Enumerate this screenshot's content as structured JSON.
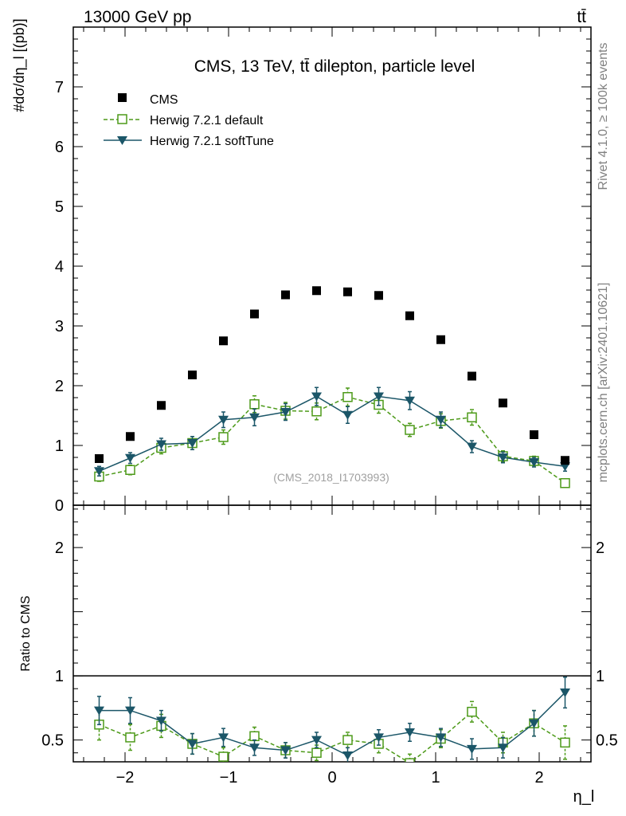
{
  "header": {
    "left_label": "13000 GeV pp",
    "right_label": "tt̄"
  },
  "side_labels": {
    "rivet": "Rivet 4.1.0, ≥ 100k events",
    "mcplots": "mcplots.cern.ch [arXiv:2401.10621]"
  },
  "colors": {
    "cms": "#000000",
    "default": "#4d9a19",
    "softtune": "#1b5668"
  },
  "chart_data": [
    {
      "type": "scatter",
      "panel": "main",
      "title": "CMS, 13 TeV, tt̄ dilepton, particle level",
      "analysis_label": "(CMS_2018_I1703993)",
      "ylabel": "#dσ/dη_l [(pb)]",
      "ylim": [
        0,
        8
      ],
      "yticks": [
        0,
        1,
        2,
        3,
        4,
        5,
        6,
        7
      ],
      "ytick_labels": [
        "0",
        "1",
        "2",
        "3",
        "4",
        "5",
        "6",
        "7"
      ],
      "xlim": [
        -2.5,
        2.5
      ],
      "x": [
        -2.25,
        -1.95,
        -1.65,
        -1.35,
        -1.05,
        -0.75,
        -0.45,
        -0.15,
        0.15,
        0.45,
        0.75,
        1.05,
        1.35,
        1.65,
        1.95,
        2.25
      ],
      "legend": [
        "CMS",
        "Herwig 7.2.1 default",
        "Herwig 7.2.1 softTune"
      ],
      "series": [
        {
          "name": "CMS",
          "style": "square",
          "values": [
            0.78,
            1.15,
            1.67,
            2.18,
            2.75,
            3.2,
            3.52,
            3.59,
            3.57,
            3.51,
            3.17,
            2.77,
            2.16,
            1.71,
            1.18,
            0.75
          ],
          "errors": [
            0,
            0,
            0,
            0,
            0,
            0,
            0,
            0,
            0,
            0,
            0,
            0,
            0,
            0,
            0,
            0
          ]
        },
        {
          "name": "Herwig 7.2.1 default",
          "style": "open-square-dashed",
          "values": [
            0.48,
            0.59,
            0.96,
            1.04,
            1.14,
            1.69,
            1.58,
            1.57,
            1.81,
            1.68,
            1.26,
            1.41,
            1.47,
            0.82,
            0.74,
            0.37
          ],
          "errors": [
            0.08,
            0.08,
            0.1,
            0.11,
            0.12,
            0.14,
            0.14,
            0.14,
            0.15,
            0.14,
            0.11,
            0.12,
            0.13,
            0.09,
            0.08,
            0.06
          ]
        },
        {
          "name": "Herwig 7.2.1 softTune",
          "style": "filled-triangle-solid",
          "values": [
            0.57,
            0.79,
            1.02,
            1.04,
            1.43,
            1.47,
            1.56,
            1.82,
            1.51,
            1.82,
            1.75,
            1.43,
            0.98,
            0.8,
            0.72,
            0.65
          ],
          "errors": [
            0.08,
            0.09,
            0.1,
            0.11,
            0.13,
            0.14,
            0.14,
            0.15,
            0.14,
            0.15,
            0.15,
            0.13,
            0.1,
            0.09,
            0.08,
            0.08
          ]
        }
      ]
    },
    {
      "type": "scatter",
      "panel": "ratio",
      "ylabel": "Ratio to CMS",
      "xlabel": "η_l",
      "ylim": [
        0.33,
        2.33
      ],
      "yticks": [
        0.5,
        1,
        2
      ],
      "ytick_labels": [
        "0.5",
        "1",
        "2"
      ],
      "xlim": [
        -2.5,
        2.5
      ],
      "xticks": [
        -2,
        -1,
        0,
        1,
        2
      ],
      "xtick_labels": [
        "−2",
        "−1",
        "0",
        "1",
        "2"
      ],
      "x": [
        -2.25,
        -1.95,
        -1.65,
        -1.35,
        -1.05,
        -0.75,
        -0.45,
        -0.15,
        0.15,
        0.45,
        0.75,
        1.05,
        1.35,
        1.65,
        1.95,
        2.25
      ],
      "series": [
        {
          "name": "Herwig 7.2.1 default",
          "values": [
            0.62,
            0.52,
            0.61,
            0.47,
            0.37,
            0.53,
            0.42,
            0.4,
            0.5,
            0.47,
            0.32,
            0.51,
            0.72,
            0.48,
            0.63,
            0.48
          ],
          "errors": [
            0.12,
            0.1,
            0.09,
            0.08,
            0.07,
            0.07,
            0.06,
            0.06,
            0.06,
            0.07,
            0.07,
            0.07,
            0.08,
            0.08,
            0.1,
            0.13
          ]
        },
        {
          "name": "Herwig 7.2.1 softTune",
          "values": [
            0.73,
            0.73,
            0.65,
            0.47,
            0.52,
            0.44,
            0.42,
            0.5,
            0.38,
            0.52,
            0.56,
            0.52,
            0.43,
            0.44,
            0.63,
            0.87
          ],
          "errors": [
            0.11,
            0.1,
            0.08,
            0.08,
            0.07,
            0.06,
            0.06,
            0.06,
            0.06,
            0.06,
            0.07,
            0.07,
            0.08,
            0.08,
            0.1,
            0.12
          ]
        }
      ]
    }
  ]
}
